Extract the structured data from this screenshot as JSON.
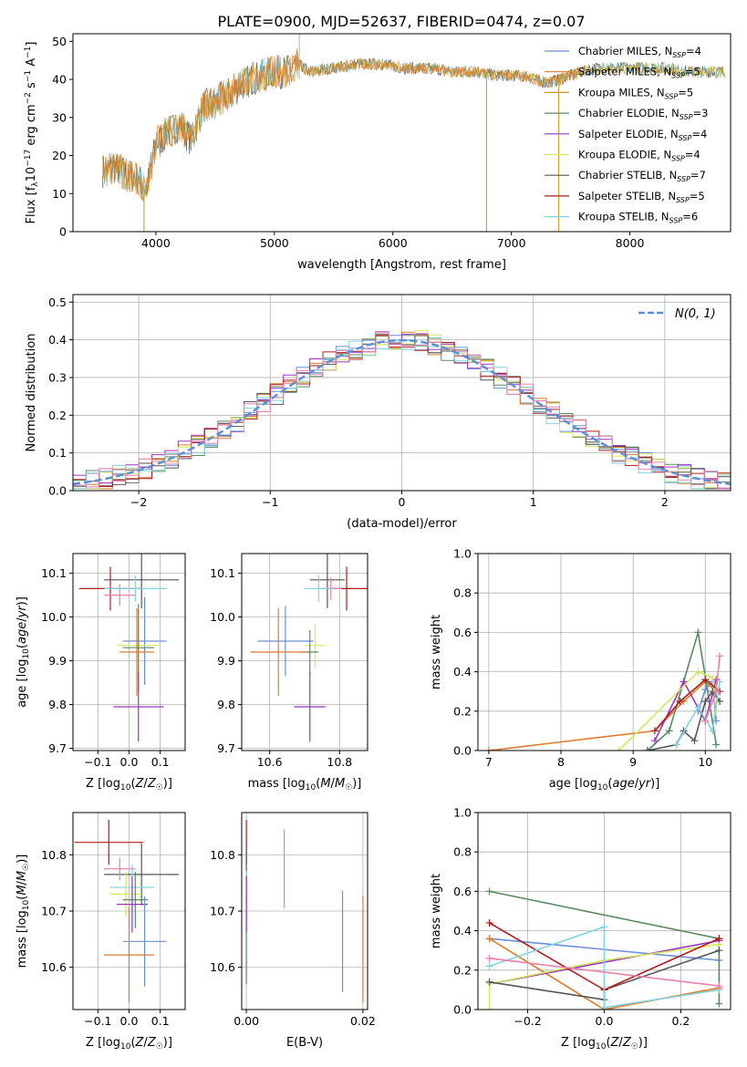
{
  "figure_title": "PLATE=0900, MJD=52637, FIBERID=0474, z=0.07",
  "palette": {
    "Chabrier MILES": "#6a8fd6",
    "Salpeter MILES": "#e07a2a",
    "Kroupa MILES": "#c49a18",
    "Chabrier ELODIE": "#5a8a60",
    "Salpeter ELODIE": "#9a35c0",
    "Kroupa ELODIE": "#d4e85c",
    "Chabrier STELIB": "#555555",
    "Salpeter STELIB": "#b01c1c",
    "Kroupa STELIB": "#82d2e0",
    "Pink": "#e880b0",
    "Gaussian": "#5b8fd6"
  },
  "chart_data": [
    {
      "id": "spectrum",
      "type": "line",
      "title": "PLATE=0900, MJD=52637, FIBERID=0474, z=0.07",
      "xlabel": "wavelength [Angstrom, rest frame]",
      "ylabel": "Flux [f_λ 10^-17 erg cm^-2 s^-1 A^-1]",
      "xlim": [
        3300,
        8850
      ],
      "ylim": [
        0,
        52
      ],
      "xticks": [
        4000,
        5000,
        6000,
        7000,
        8000
      ],
      "yticks": [
        0,
        10,
        20,
        30,
        40,
        50
      ],
      "grid": false,
      "legend_position": "top-right",
      "continuum_points": {
        "x": [
          3550,
          3650,
          3750,
          3850,
          3920,
          4000,
          4100,
          4200,
          4300,
          4400,
          4500,
          4600,
          4700,
          4800,
          4900,
          5000,
          5100,
          5200,
          5300,
          5500,
          5700,
          5900,
          6100,
          6300,
          6500,
          6700,
          6900,
          7100,
          7300,
          7500,
          7700,
          7900,
          8100,
          8300,
          8500,
          8700,
          8800
        ],
        "y": [
          16,
          17,
          15,
          14,
          11,
          23,
          26,
          28,
          24,
          33,
          34,
          36,
          38,
          40,
          41,
          42,
          42,
          44,
          42,
          43,
          44,
          44,
          43,
          43,
          42,
          42,
          41,
          41,
          39,
          41,
          43,
          43,
          43,
          43,
          42,
          42,
          42
        ]
      },
      "dips": [
        {
          "x": 3900,
          "y": 0,
          "series": "Kroupa MILES"
        },
        {
          "x": 6790,
          "y": 0,
          "series": "Kroupa MILES"
        },
        {
          "x": 7400,
          "y": 0,
          "series": "Kroupa MILES"
        }
      ],
      "series": [
        {
          "name": "Chabrier MILES, N_SSP=4"
        },
        {
          "name": "Salpeter MILES, N_SSP=5"
        },
        {
          "name": "Kroupa MILES, N_SSP=5"
        },
        {
          "name": "Chabrier ELODIE, N_SSP=3"
        },
        {
          "name": "Salpeter ELODIE, N_SSP=4"
        },
        {
          "name": "Kroupa ELODIE, N_SSP=4"
        },
        {
          "name": "Chabrier STELIB, N_SSP=7"
        },
        {
          "name": "Salpeter STELIB, N_SSP=5"
        },
        {
          "name": "Kroupa STELIB, N_SSP=6"
        }
      ]
    },
    {
      "id": "residuals",
      "type": "line",
      "xlabel": "(data-model)/error",
      "ylabel": "Normed distribution",
      "xlim": [
        -2.5,
        2.5
      ],
      "ylim": [
        0,
        0.52
      ],
      "xticks": [
        -2,
        -1,
        0,
        1,
        2
      ],
      "yticks": [
        0.0,
        0.1,
        0.2,
        0.3,
        0.4,
        0.5
      ],
      "grid": true,
      "legend_position": "top-right",
      "legend": "N(0, 1)",
      "bin_width": 0.1,
      "histogram_series": [
        "Chabrier MILES",
        "Salpeter MILES",
        "Chabrier ELODIE",
        "Salpeter ELODIE",
        "Kroupa ELODIE",
        "Chabrier STELIB",
        "Salpeter STELIB",
        "Kroupa STELIB",
        "Pink"
      ]
    },
    {
      "id": "age_vs_Z",
      "type": "scatter",
      "xlabel": "Z [log10(Z/Z☉)]",
      "ylabel": "age [log10(age/yr)]",
      "xlim": [
        -0.18,
        0.18
      ],
      "ylim": [
        9.695,
        10.145
      ],
      "xticks": [
        -0.1,
        0.0,
        0.1
      ],
      "yticks": [
        9.7,
        9.8,
        9.9,
        10.0,
        10.1
      ],
      "grid": true,
      "points": [
        {
          "series": "Salpeter STELIB",
          "x": -0.06,
          "xerr": 0.1,
          "y": 10.065,
          "yerr": 0.05
        },
        {
          "series": "Chabrier STELIB",
          "x": 0.04,
          "xerr": 0.12,
          "y": 10.085,
          "yerr": 0.065
        },
        {
          "series": "Pink",
          "x": -0.03,
          "xerr": 0.05,
          "y": 10.05,
          "yerr": 0.025
        },
        {
          "series": "Kroupa STELIB",
          "x": 0.02,
          "xerr": 0.1,
          "y": 10.065,
          "yerr": 0.03
        },
        {
          "series": "Chabrier MILES",
          "x": 0.05,
          "xerr": 0.07,
          "y": 9.945,
          "yerr": 0.1
        },
        {
          "series": "Kroupa ELODIE",
          "x": 0.03,
          "xerr": 0.07,
          "y": 9.935,
          "yerr": 0.08
        },
        {
          "series": "Chabrier ELODIE",
          "x": 0.03,
          "xerr": 0.05,
          "y": 9.93,
          "yerr": 0.1
        },
        {
          "series": "Salpeter MILES",
          "x": 0.025,
          "xerr": 0.055,
          "y": 9.92,
          "yerr": 0.1
        },
        {
          "series": "Salpeter ELODIE",
          "x": 0.03,
          "xerr": 0.08,
          "y": 9.795,
          "yerr": 0.08
        }
      ]
    },
    {
      "id": "age_vs_mass",
      "type": "scatter",
      "xlabel": "mass [log10(M/M☉)]",
      "ylabel": "",
      "xlim": [
        10.52,
        10.88
      ],
      "ylim": [
        9.695,
        10.145
      ],
      "xticks": [
        10.6,
        10.8
      ],
      "yticks": [
        9.7,
        9.8,
        9.9,
        10.0,
        10.1
      ],
      "grid": true,
      "points": [
        {
          "series": "Salpeter STELIB",
          "x": 10.82,
          "xerr": 0.06,
          "y": 10.065,
          "yerr": 0.05
        },
        {
          "series": "Chabrier STELIB",
          "x": 10.765,
          "xerr": 0.05,
          "y": 10.085,
          "yerr": 0.065
        },
        {
          "series": "Pink",
          "x": 10.775,
          "xerr": 0.03,
          "y": 10.065,
          "yerr": 0.025
        },
        {
          "series": "Kroupa STELIB",
          "x": 10.74,
          "xerr": 0.04,
          "y": 10.065,
          "yerr": 0.03
        },
        {
          "series": "Chabrier MILES",
          "x": 10.645,
          "xerr": 0.08,
          "y": 9.945,
          "yerr": 0.08
        },
        {
          "series": "Kroupa ELODIE",
          "x": 10.73,
          "xerr": 0.03,
          "y": 9.935,
          "yerr": 0.05
        },
        {
          "series": "Chabrier ELODIE",
          "x": 10.715,
          "xerr": 0.025,
          "y": 9.92,
          "yerr": 0.05
        },
        {
          "series": "Salpeter MILES",
          "x": 10.625,
          "xerr": 0.08,
          "y": 9.92,
          "yerr": 0.1
        },
        {
          "series": "Salpeter ELODIE",
          "x": 10.715,
          "xerr": 0.045,
          "y": 9.795,
          "yerr": 0.08
        }
      ]
    },
    {
      "id": "weight_vs_age",
      "type": "line",
      "xlabel": "age [log10(age/yr)]",
      "ylabel": "mass weight",
      "xlim": [
        6.85,
        10.35
      ],
      "ylim": [
        0.0,
        1.0
      ],
      "xticks": [
        7,
        8,
        9,
        10
      ],
      "yticks": [
        0.0,
        0.2,
        0.4,
        0.6,
        0.8,
        1.0
      ],
      "grid": true,
      "series": [
        {
          "name": "Chabrier MILES",
          "x": [
            9.9,
            10.0,
            10.1,
            10.15
          ],
          "y": [
            0.2,
            0.31,
            0.35,
            0.15
          ]
        },
        {
          "name": "Salpeter MILES",
          "x": [
            7.0,
            9.3,
            9.7,
            10.0,
            10.15
          ],
          "y": [
            0.0,
            0.1,
            0.25,
            0.35,
            0.3
          ]
        },
        {
          "name": "Chabrier ELODIE",
          "x": [
            9.2,
            9.5,
            9.9,
            10.15
          ],
          "y": [
            0.0,
            0.1,
            0.6,
            0.03
          ]
        },
        {
          "name": "Salpeter ELODIE",
          "x": [
            9.3,
            9.7,
            10.0,
            10.15
          ],
          "y": [
            0.05,
            0.35,
            0.15,
            0.36
          ]
        },
        {
          "name": "Kroupa ELODIE",
          "x": [
            8.8,
            9.9,
            10.1,
            10.15
          ],
          "y": [
            0.0,
            0.4,
            0.37,
            0.2
          ]
        },
        {
          "name": "Chabrier STELIB",
          "x": [
            9.2,
            9.6,
            9.7,
            9.85,
            10.0,
            10.1,
            10.2
          ],
          "y": [
            0.0,
            0.03,
            0.1,
            0.05,
            0.25,
            0.3,
            0.25
          ]
        },
        {
          "name": "Salpeter STELIB",
          "x": [
            9.3,
            9.65,
            10.0,
            10.2
          ],
          "y": [
            0.1,
            0.25,
            0.36,
            0.3
          ]
        },
        {
          "name": "Kroupa STELIB",
          "x": [
            9.6,
            9.9,
            10.1,
            10.2
          ],
          "y": [
            0.03,
            0.22,
            0.1,
            0.35
          ]
        },
        {
          "name": "Pink",
          "x": [
            10.0,
            10.15,
            10.2
          ],
          "y": [
            0.15,
            0.3,
            0.48
          ]
        }
      ]
    },
    {
      "id": "mass_vs_Z",
      "type": "scatter",
      "xlabel": "Z [log10(Z/Z☉)]",
      "ylabel": "mass [log10(M/M☉)]",
      "xlim": [
        -0.18,
        0.18
      ],
      "ylim": [
        10.525,
        10.875
      ],
      "xticks": [
        -0.1,
        0.0,
        0.1
      ],
      "yticks": [
        10.6,
        10.7,
        10.8
      ],
      "grid": true,
      "points": [
        {
          "series": "Salpeter STELIB",
          "x": -0.065,
          "xerr": 0.11,
          "y": 10.822,
          "yerr": 0.04
        },
        {
          "series": "Chabrier STELIB",
          "x": 0.04,
          "xerr": 0.12,
          "y": 10.765,
          "yerr": 0.055
        },
        {
          "series": "Pink",
          "x": -0.03,
          "xerr": 0.05,
          "y": 10.775,
          "yerr": 0.02
        },
        {
          "series": "Kroupa STELIB",
          "x": 0.01,
          "xerr": 0.07,
          "y": 10.742,
          "yerr": 0.04
        },
        {
          "series": "Kroupa ELODIE",
          "x": -0.01,
          "xerr": 0.05,
          "y": 10.73,
          "yerr": 0.04
        },
        {
          "series": "Chabrier ELODIE",
          "x": 0.02,
          "xerr": 0.04,
          "y": 10.72,
          "yerr": 0.05
        },
        {
          "series": "Salpeter ELODIE",
          "x": 0.01,
          "xerr": 0.05,
          "y": 10.712,
          "yerr": 0.05
        },
        {
          "series": "Chabrier MILES",
          "x": 0.05,
          "xerr": 0.07,
          "y": 10.646,
          "yerr": 0.08
        },
        {
          "series": "Salpeter MILES",
          "x": 0.0,
          "xerr": 0.08,
          "y": 10.622,
          "yerr": 0.085
        }
      ]
    },
    {
      "id": "mass_vs_ebv",
      "type": "scatter",
      "xlabel": "E(B-V)",
      "ylabel": "",
      "xlim": [
        -0.0008,
        0.0208
      ],
      "ylim": [
        10.525,
        10.875
      ],
      "xticks": [
        0.0,
        0.02
      ],
      "xticklabels": [
        "0.00",
        "0.02"
      ],
      "yticks": [
        10.6,
        10.7,
        10.8
      ],
      "grid": true,
      "points": [
        {
          "series": "Salpeter STELIB",
          "x": 0.0,
          "y": 10.822,
          "yerr": 0.04
        },
        {
          "series": "Chabrier STELIB",
          "x": 0.0,
          "y": 10.765,
          "yerr": 0.05
        },
        {
          "series": "Kroupa STELIB",
          "x": 0.0,
          "y": 10.742,
          "yerr": 0.03
        },
        {
          "series": "Chabrier ELODIE",
          "x": 0.0,
          "y": 10.65,
          "yerr": 0.08
        },
        {
          "series": "Salpeter ELODIE",
          "x": 0.0,
          "y": 10.712,
          "yerr": 0.05
        },
        {
          "series": "Pink",
          "x": 0.0065,
          "y": 10.775,
          "yerr": 0.07
        },
        {
          "series": "Chabrier MILES",
          "x": 0.0165,
          "y": 10.646,
          "yerr": 0.09
        },
        {
          "series": "Salpeter MILES",
          "x": 0.02,
          "y": 10.632,
          "yerr": 0.095
        }
      ]
    },
    {
      "id": "weight_vs_Z",
      "type": "line",
      "xlabel": "Z [log10(Z/Z☉)]",
      "ylabel": "mass weight",
      "xlim": [
        -0.33,
        0.33
      ],
      "ylim": [
        0.0,
        1.0
      ],
      "xticks": [
        -0.2,
        0.0,
        0.2
      ],
      "yticks": [
        0.0,
        0.2,
        0.4,
        0.6,
        0.8,
        1.0
      ],
      "grid": true,
      "series": [
        {
          "name": "Chabrier MILES",
          "x": [
            -0.3,
            0.3
          ],
          "y": [
            0.36,
            0.25
          ]
        },
        {
          "name": "Salpeter MILES",
          "x": [
            -0.3,
            0.0,
            0.3
          ],
          "y": [
            0.36,
            0.0,
            0.11
          ]
        },
        {
          "name": "Chabrier ELODIE",
          "x": [
            -0.3,
            0.3,
            0.3
          ],
          "y": [
            0.6,
            0.36,
            0.03
          ]
        },
        {
          "name": "Salpeter ELODIE",
          "x": [
            -0.3,
            0.3
          ],
          "y": [
            0.13,
            0.35
          ]
        },
        {
          "name": "Kroupa ELODIE",
          "x": [
            -0.3,
            -0.3,
            0.0,
            0.3
          ],
          "y": [
            0.0,
            0.13,
            0.25,
            0.33
          ]
        },
        {
          "name": "Chabrier STELIB",
          "x": [
            -0.3,
            0.0,
            0.0,
            0.3
          ],
          "y": [
            0.14,
            0.05,
            0.1,
            0.3
          ]
        },
        {
          "name": "Salpeter STELIB",
          "x": [
            -0.3,
            0.0,
            0.3
          ],
          "y": [
            0.44,
            0.1,
            0.36
          ]
        },
        {
          "name": "Kroupa STELIB",
          "x": [
            -0.3,
            0.0,
            0.0,
            0.3
          ],
          "y": [
            0.22,
            0.42,
            0.01,
            0.1
          ]
        },
        {
          "name": "Pink",
          "x": [
            -0.3,
            0.3
          ],
          "y": [
            0.26,
            0.12
          ]
        }
      ]
    }
  ]
}
